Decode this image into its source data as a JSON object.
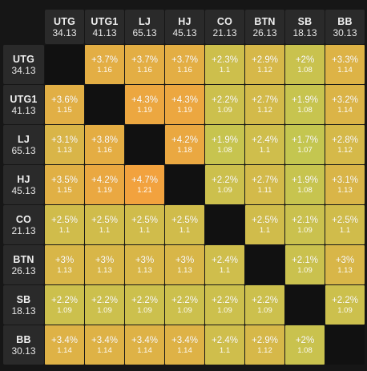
{
  "positions": [
    {
      "name": "UTG",
      "stack": "34.13"
    },
    {
      "name": "UTG1",
      "stack": "41.13"
    },
    {
      "name": "LJ",
      "stack": "65.13"
    },
    {
      "name": "HJ",
      "stack": "45.13"
    },
    {
      "name": "CO",
      "stack": "21.13"
    },
    {
      "name": "BTN",
      "stack": "26.13"
    },
    {
      "name": "SB",
      "stack": "18.13"
    },
    {
      "name": "BB",
      "stack": "30.13"
    }
  ],
  "rows": [
    [
      null,
      {
        "pct": "+3.7%",
        "mult": "1.16"
      },
      {
        "pct": "+3.7%",
        "mult": "1.16"
      },
      {
        "pct": "+3.7%",
        "mult": "1.16"
      },
      {
        "pct": "+2.3%",
        "mult": "1.1"
      },
      {
        "pct": "+2.9%",
        "mult": "1.12"
      },
      {
        "pct": "+2%",
        "mult": "1.08"
      },
      {
        "pct": "+3.3%",
        "mult": "1.14"
      }
    ],
    [
      {
        "pct": "+3.6%",
        "mult": "1.15"
      },
      null,
      {
        "pct": "+4.3%",
        "mult": "1.19"
      },
      {
        "pct": "+4.3%",
        "mult": "1.19"
      },
      {
        "pct": "+2.2%",
        "mult": "1.09"
      },
      {
        "pct": "+2.7%",
        "mult": "1.12"
      },
      {
        "pct": "+1.9%",
        "mult": "1.08"
      },
      {
        "pct": "+3.2%",
        "mult": "1.14"
      }
    ],
    [
      {
        "pct": "+3.1%",
        "mult": "1.13"
      },
      {
        "pct": "+3.8%",
        "mult": "1.16"
      },
      null,
      {
        "pct": "+4.2%",
        "mult": "1.18"
      },
      {
        "pct": "+1.9%",
        "mult": "1.08"
      },
      {
        "pct": "+2.4%",
        "mult": "1.1"
      },
      {
        "pct": "+1.7%",
        "mult": "1.07"
      },
      {
        "pct": "+2.8%",
        "mult": "1.12"
      }
    ],
    [
      {
        "pct": "+3.5%",
        "mult": "1.15"
      },
      {
        "pct": "+4.2%",
        "mult": "1.19"
      },
      {
        "pct": "+4.7%",
        "mult": "1.21"
      },
      null,
      {
        "pct": "+2.2%",
        "mult": "1.09"
      },
      {
        "pct": "+2.7%",
        "mult": "1.11"
      },
      {
        "pct": "+1.9%",
        "mult": "1.08"
      },
      {
        "pct": "+3.1%",
        "mult": "1.13"
      }
    ],
    [
      {
        "pct": "+2.5%",
        "mult": "1.1"
      },
      {
        "pct": "+2.5%",
        "mult": "1.1"
      },
      {
        "pct": "+2.5%",
        "mult": "1.1"
      },
      {
        "pct": "+2.5%",
        "mult": "1.1"
      },
      null,
      {
        "pct": "+2.5%",
        "mult": "1.1"
      },
      {
        "pct": "+2.1%",
        "mult": "1.09"
      },
      {
        "pct": "+2.5%",
        "mult": "1.1"
      }
    ],
    [
      {
        "pct": "+3%",
        "mult": "1.13"
      },
      {
        "pct": "+3%",
        "mult": "1.13"
      },
      {
        "pct": "+3%",
        "mult": "1.13"
      },
      {
        "pct": "+3%",
        "mult": "1.13"
      },
      {
        "pct": "+2.4%",
        "mult": "1.1"
      },
      null,
      {
        "pct": "+2.1%",
        "mult": "1.09"
      },
      {
        "pct": "+3%",
        "mult": "1.13"
      }
    ],
    [
      {
        "pct": "+2.2%",
        "mult": "1.09"
      },
      {
        "pct": "+2.2%",
        "mult": "1.09"
      },
      {
        "pct": "+2.2%",
        "mult": "1.09"
      },
      {
        "pct": "+2.2%",
        "mult": "1.09"
      },
      {
        "pct": "+2.2%",
        "mult": "1.09"
      },
      {
        "pct": "+2.2%",
        "mult": "1.09"
      },
      null,
      {
        "pct": "+2.2%",
        "mult": "1.09"
      }
    ],
    [
      {
        "pct": "+3.4%",
        "mult": "1.14"
      },
      {
        "pct": "+3.4%",
        "mult": "1.14"
      },
      {
        "pct": "+3.4%",
        "mult": "1.14"
      },
      {
        "pct": "+3.4%",
        "mult": "1.14"
      },
      {
        "pct": "+2.4%",
        "mult": "1.1"
      },
      {
        "pct": "+2.9%",
        "mult": "1.12"
      },
      {
        "pct": "+2%",
        "mult": "1.08"
      },
      null
    ]
  ],
  "colors": {
    "low": "#c4c650",
    "high": "#f2a23e",
    "background": "#161616",
    "header": "#2a2a2a",
    "diagonal": "#111111"
  },
  "color_scale_pct": [
    1.7,
    4.7
  ]
}
